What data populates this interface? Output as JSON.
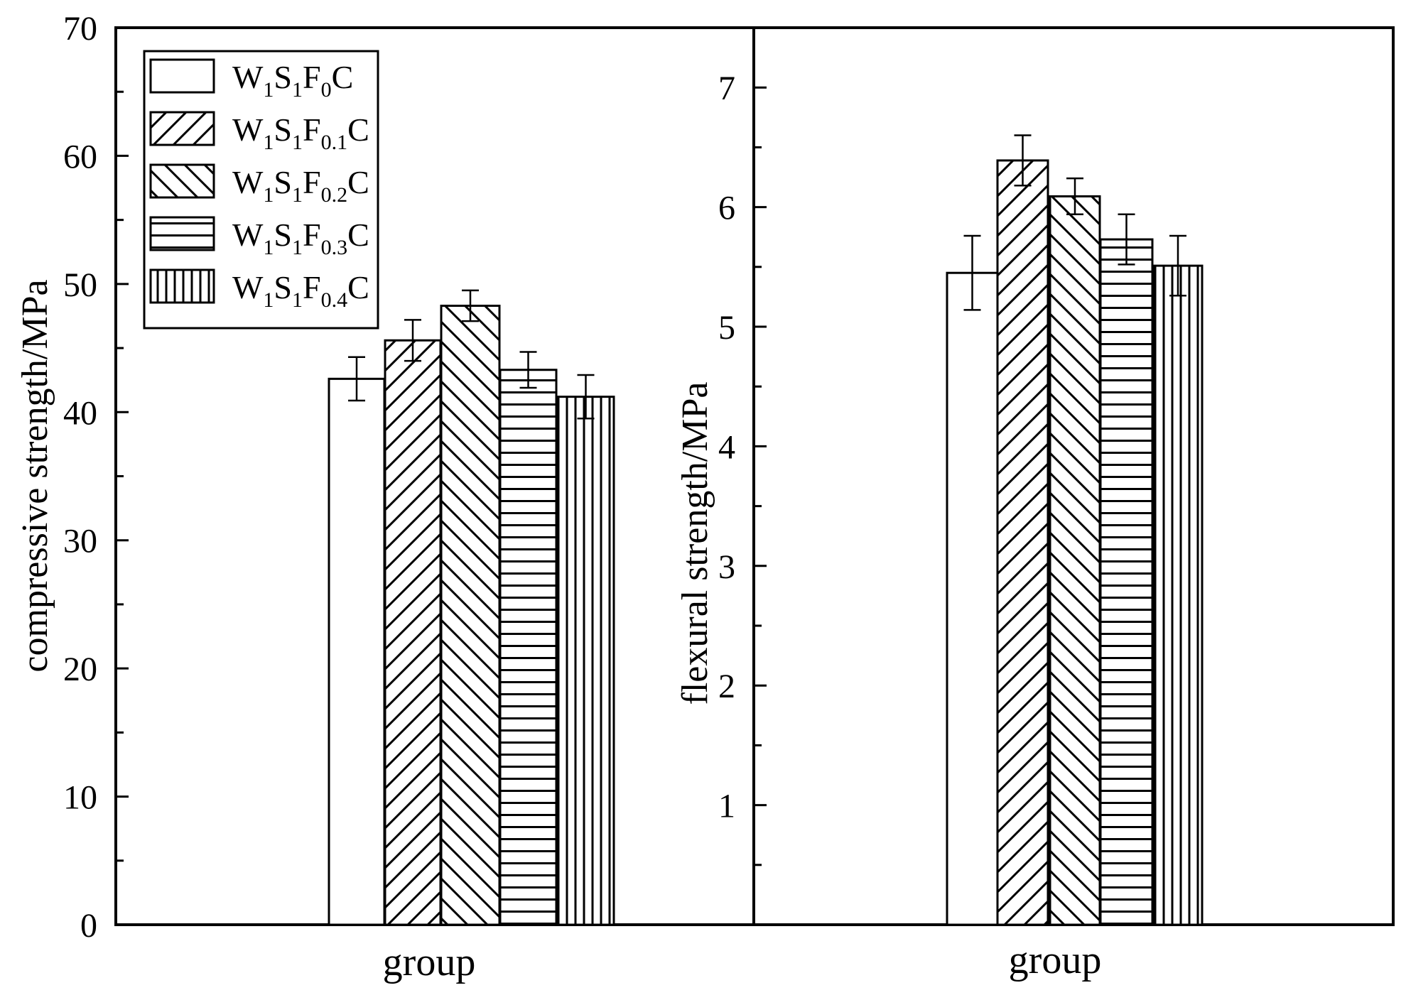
{
  "chart_data": [
    {
      "type": "bar",
      "title": "",
      "xlabel": "group",
      "ylabel": "compressive strength/MPa",
      "ylim": [
        0,
        70
      ],
      "yticks": [
        0,
        10,
        20,
        30,
        40,
        50,
        60,
        70
      ],
      "categories": [
        "group"
      ],
      "series": [
        {
          "name": "W1S1F0C",
          "values": [
            42.6
          ],
          "error": [
            1.7
          ],
          "pattern": "none"
        },
        {
          "name": "W1S1F0.1C",
          "values": [
            45.6
          ],
          "error": [
            1.6
          ],
          "pattern": "diag-up"
        },
        {
          "name": "W1S1F0.2C",
          "values": [
            48.3
          ],
          "error": [
            1.2
          ],
          "pattern": "diag-down"
        },
        {
          "name": "W1S1F0.3C",
          "values": [
            43.3
          ],
          "error": [
            1.4
          ],
          "pattern": "horizontal"
        },
        {
          "name": "W1S1F0.4C",
          "values": [
            41.2
          ],
          "error": [
            1.7
          ],
          "pattern": "vertical"
        }
      ],
      "legend": {
        "position": "top-left",
        "entries": [
          {
            "w": "W",
            "ws": "1",
            "s": "S",
            "ss": "1",
            "f": "F",
            "fs": "0",
            "c": "C",
            "pattern": "none"
          },
          {
            "w": "W",
            "ws": "1",
            "s": "S",
            "ss": "1",
            "f": "F",
            "fs": "0.1",
            "c": "C",
            "pattern": "diag-up"
          },
          {
            "w": "W",
            "ws": "1",
            "s": "S",
            "ss": "1",
            "f": "F",
            "fs": "0.2",
            "c": "C",
            "pattern": "diag-down"
          },
          {
            "w": "W",
            "ws": "1",
            "s": "S",
            "ss": "1",
            "f": "F",
            "fs": "0.3",
            "c": "C",
            "pattern": "horizontal"
          },
          {
            "w": "W",
            "ws": "1",
            "s": "S",
            "ss": "1",
            "f": "F",
            "fs": "0.4",
            "c": "C",
            "pattern": "vertical"
          }
        ]
      }
    },
    {
      "type": "bar",
      "title": "",
      "xlabel": "group",
      "ylabel": "flexural strength/MPa",
      "ylim": [
        0,
        7.5
      ],
      "yticks": [
        1,
        2,
        3,
        4,
        5,
        6,
        7
      ],
      "categories": [
        "group"
      ],
      "series": [
        {
          "name": "W1S1F0C",
          "values": [
            5.45
          ],
          "error": [
            0.31
          ],
          "pattern": "none"
        },
        {
          "name": "W1S1F0.1C",
          "values": [
            6.39
          ],
          "error": [
            0.21
          ],
          "pattern": "diag-up"
        },
        {
          "name": "W1S1F0.2C",
          "values": [
            6.09
          ],
          "error": [
            0.15
          ],
          "pattern": "diag-down"
        },
        {
          "name": "W1S1F0.3C",
          "values": [
            5.73
          ],
          "error": [
            0.21
          ],
          "pattern": "horizontal"
        },
        {
          "name": "W1S1F0.4C",
          "values": [
            5.51
          ],
          "error": [
            0.25
          ],
          "pattern": "vertical"
        }
      ]
    }
  ],
  "colors": {
    "ink": "#000000",
    "fill": "#ffffff"
  }
}
